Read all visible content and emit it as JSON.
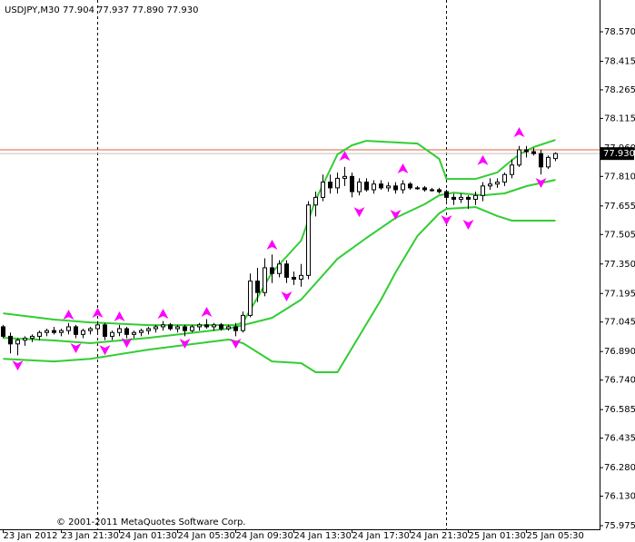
{
  "chart_data": {
    "type": "candlestick",
    "title": "USDJPY,M30  77.904 77.937 77.890 77.930",
    "copyright": "© 2001-2011 MetaQuotes Software Corp.",
    "categories": [
      "23 Jan 2012",
      null,
      null,
      null,
      null,
      null,
      null,
      null,
      "23 Jan 21:30",
      null,
      null,
      null,
      null,
      null,
      null,
      null,
      "24 Jan 01:30",
      null,
      null,
      null,
      null,
      null,
      null,
      null,
      "24 Jan 05:30",
      null,
      null,
      null,
      null,
      null,
      null,
      null,
      "24 Jan 09:30",
      null,
      null,
      null,
      null,
      null,
      null,
      null,
      "24 Jan 13:30",
      null,
      null,
      null,
      null,
      null,
      null,
      null,
      "24 Jan 17:30",
      null,
      null,
      null,
      null,
      null,
      null,
      null,
      "24 Jan 21:30",
      null,
      null,
      null,
      null,
      null,
      null,
      null,
      "25 Jan 01:30",
      null,
      null,
      null,
      null,
      null,
      null,
      null,
      "25 Jan 05:30",
      null,
      null,
      null,
      null
    ],
    "open": [
      77.02,
      76.97,
      76.93,
      76.95,
      76.96,
      76.97,
      76.99,
      77.0,
      76.99,
      77.0,
      77.02,
      76.98,
      77.0,
      77.01,
      77.03,
      76.97,
      76.99,
      77.01,
      76.98,
      76.99,
      77.0,
      77.01,
      77.02,
      77.03,
      77.01,
      77.02,
      77.0,
      77.02,
      77.03,
      77.02,
      77.03,
      77.01,
      77.02,
      77.0,
      77.08,
      77.26,
      77.2,
      77.33,
      77.3,
      77.35,
      77.28,
      77.27,
      77.29,
      77.66,
      77.7,
      77.78,
      77.75,
      77.8,
      77.81,
      77.73,
      77.78,
      77.74,
      77.77,
      77.75,
      77.76,
      77.74,
      77.77,
      77.75,
      77.75,
      77.74,
      77.74,
      77.73,
      77.7,
      77.69,
      77.7,
      77.69,
      77.71,
      77.76,
      77.77,
      77.78,
      77.82,
      77.87,
      77.95,
      77.94,
      77.93,
      77.86,
      77.904
    ],
    "high": [
      77.03,
      76.99,
      76.96,
      76.97,
      76.98,
      77.0,
      77.01,
      77.02,
      77.01,
      77.04,
      77.03,
      77.01,
      77.02,
      77.05,
      77.04,
      77.0,
      77.03,
      77.02,
      77.0,
      77.01,
      77.02,
      77.03,
      77.05,
      77.04,
      77.03,
      77.03,
      77.03,
      77.04,
      77.06,
      77.04,
      77.04,
      77.03,
      77.04,
      77.1,
      77.3,
      77.33,
      77.38,
      77.4,
      77.37,
      77.37,
      77.31,
      77.35,
      77.68,
      77.73,
      77.82,
      77.82,
      77.83,
      77.86,
      77.83,
      77.8,
      77.8,
      77.79,
      77.79,
      77.78,
      77.78,
      77.79,
      77.78,
      77.76,
      77.76,
      77.75,
      77.75,
      77.74,
      77.72,
      77.72,
      77.71,
      77.73,
      77.78,
      77.8,
      77.8,
      77.83,
      77.9,
      77.97,
      77.97,
      77.96,
      77.95,
      77.92,
      77.937
    ],
    "low": [
      76.96,
      76.88,
      76.87,
      76.92,
      76.94,
      76.95,
      76.97,
      76.98,
      76.97,
      76.98,
      76.96,
      76.96,
      76.98,
      76.99,
      76.95,
      76.95,
      76.97,
      76.96,
      76.96,
      76.97,
      76.98,
      76.99,
      77.0,
      77.0,
      76.99,
      76.97,
      76.99,
      77.0,
      77.01,
      77.0,
      77.0,
      77.0,
      76.97,
      76.99,
      77.07,
      77.15,
      77.18,
      77.25,
      77.28,
      77.25,
      77.24,
      77.23,
      77.27,
      77.6,
      77.68,
      77.72,
      77.72,
      77.76,
      77.7,
      77.71,
      77.73,
      77.72,
      77.74,
      77.73,
      77.72,
      77.72,
      77.74,
      77.74,
      77.73,
      77.73,
      77.72,
      77.68,
      77.66,
      77.67,
      77.64,
      77.66,
      77.68,
      77.74,
      77.75,
      77.76,
      77.8,
      77.86,
      77.91,
      77.92,
      77.82,
      77.85,
      77.89
    ],
    "close": [
      76.97,
      76.93,
      76.95,
      76.96,
      76.97,
      76.99,
      77.0,
      76.99,
      77.0,
      77.02,
      76.98,
      77.0,
      77.01,
      77.03,
      76.97,
      76.99,
      77.01,
      76.98,
      76.99,
      77.0,
      77.01,
      77.02,
      77.03,
      77.01,
      77.02,
      77.0,
      77.02,
      77.03,
      77.02,
      77.03,
      77.01,
      77.02,
      77.0,
      77.08,
      77.26,
      77.2,
      77.33,
      77.3,
      77.35,
      77.28,
      77.27,
      77.29,
      77.66,
      77.7,
      77.78,
      77.75,
      77.8,
      77.81,
      77.73,
      77.78,
      77.74,
      77.77,
      77.75,
      77.76,
      77.74,
      77.77,
      77.75,
      77.75,
      77.74,
      77.74,
      77.73,
      77.7,
      77.69,
      77.7,
      77.69,
      77.71,
      77.76,
      77.77,
      77.78,
      77.82,
      77.87,
      77.95,
      77.94,
      77.93,
      77.86,
      77.91,
      77.93
    ],
    "bull_color": "#ffffff",
    "bear_color": "#000000",
    "bands": [
      {
        "color": "#32cd32",
        "x": [
          0,
          7,
          12,
          20,
          32,
          33,
          37,
          41,
          43,
          46,
          48,
          50,
          57,
          60,
          61,
          65,
          68,
          69,
          71,
          73,
          76
        ],
        "values": [
          77.091,
          77.058,
          77.043,
          77.029,
          77.029,
          77.043,
          77.306,
          77.473,
          77.687,
          77.926,
          77.974,
          77.997,
          77.983,
          77.902,
          77.797,
          77.797,
          77.831,
          77.864,
          77.926,
          77.964,
          78.002
        ]
      },
      {
        "color": "#32cd32",
        "x": [
          0,
          7,
          12,
          20,
          31,
          33,
          37,
          41,
          46,
          50,
          54,
          58,
          60,
          62,
          66,
          69,
          72,
          76
        ],
        "values": [
          76.962,
          76.948,
          76.934,
          76.962,
          77.01,
          77.029,
          77.067,
          77.163,
          77.377,
          77.487,
          77.592,
          77.664,
          77.711,
          77.725,
          77.711,
          77.721,
          77.759,
          77.792
        ]
      },
      {
        "color": "#32cd32",
        "x": [
          0,
          7,
          12,
          20,
          31,
          33,
          37,
          41,
          43,
          46,
          49,
          52,
          54,
          57,
          60,
          61,
          65,
          68,
          70,
          76
        ],
        "values": [
          76.852,
          76.838,
          76.852,
          76.9,
          76.953,
          76.934,
          76.838,
          76.829,
          76.781,
          76.781,
          76.972,
          77.163,
          77.306,
          77.497,
          77.616,
          77.64,
          77.649,
          77.602,
          77.578,
          77.578
        ]
      }
    ],
    "fractals_up": {
      "color": "#ff00ff",
      "x": [
        9,
        13,
        16,
        22,
        28,
        37,
        47,
        55,
        66,
        71
      ],
      "values": [
        77.081,
        77.091,
        77.072,
        77.086,
        77.096,
        77.449,
        77.916,
        77.85,
        77.893,
        78.04
      ]
    },
    "fractals_down": {
      "color": "#ff00ff",
      "x": [
        2,
        10,
        14,
        17,
        25,
        32,
        39,
        49,
        54,
        61,
        64,
        74
      ],
      "values": [
        76.819,
        76.91,
        76.9,
        76.938,
        76.934,
        76.934,
        77.182,
        77.625,
        77.611,
        77.582,
        77.559,
        77.778
      ]
    },
    "day_separators": [
      13,
      61
    ],
    "ask_line": {
      "value": 77.95,
      "color": "#e0603a"
    },
    "bid": {
      "value": 77.93,
      "label": "77.930",
      "color": "#c0c0c0"
    },
    "ylim": [
      75.956,
      78.737
    ],
    "yticks": [
      {
        "value": 78.57,
        "label": "78.570"
      },
      78.415,
      78.265,
      78.115,
      {
        "value": 77.96,
        "label": "77.960"
      },
      {
        "value": 77.81,
        "label": "77.810"
      },
      77.655,
      77.505,
      {
        "value": 77.35,
        "label": "77.350"
      },
      77.195,
      77.045,
      {
        "value": 76.89,
        "label": "76.890"
      },
      {
        "value": 76.74,
        "label": "76.740"
      },
      76.585,
      76.435,
      {
        "value": 76.28,
        "label": "76.280"
      },
      {
        "value": 76.13,
        "label": "76.130"
      },
      75.975
    ]
  }
}
